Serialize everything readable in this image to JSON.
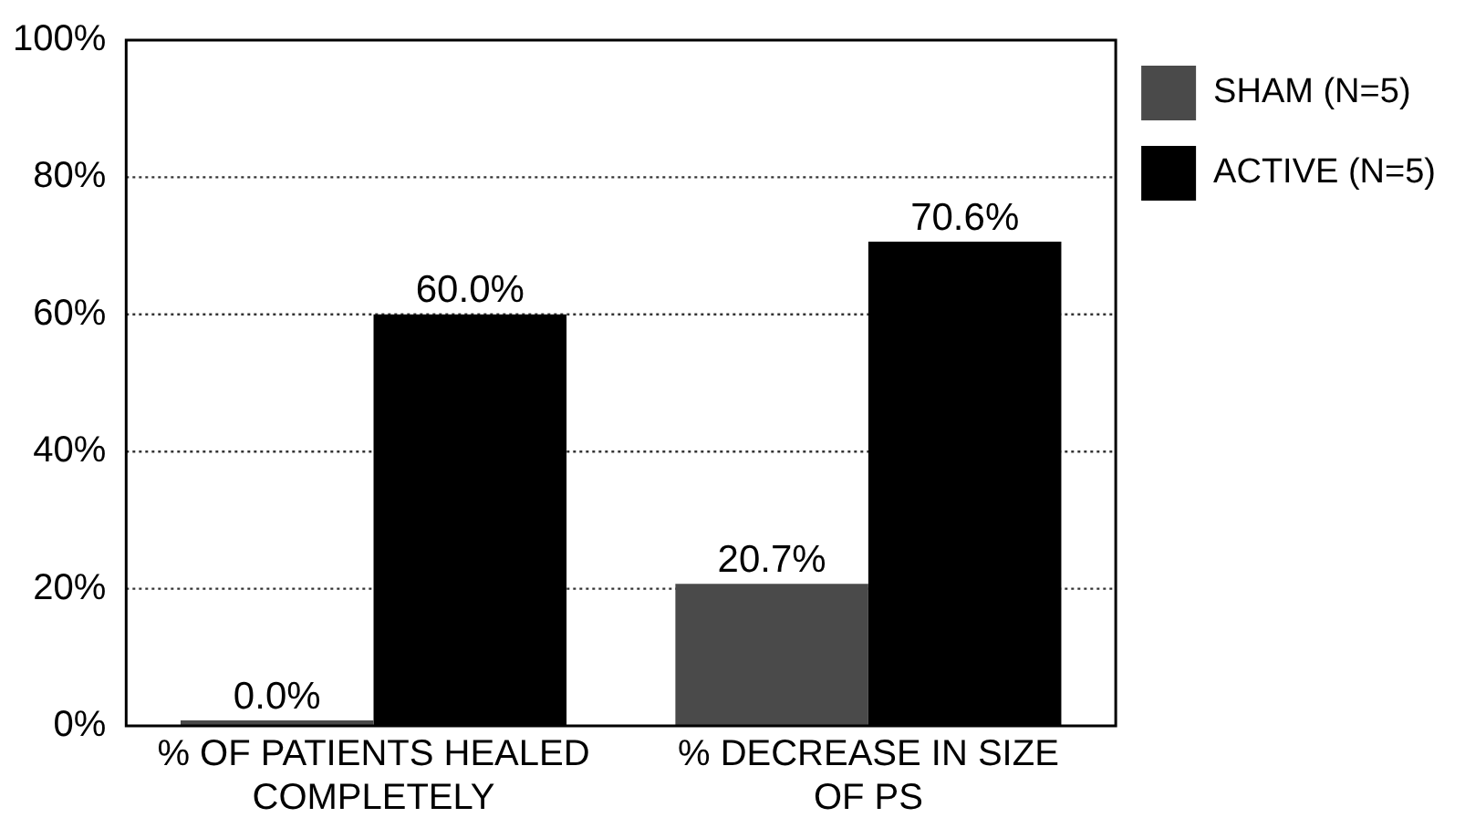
{
  "chart_data": {
    "type": "bar",
    "categories": [
      "% OF PATIENTS HEALED COMPLETELY",
      "% DECREASE IN SIZE OF PS"
    ],
    "series": [
      {
        "name": "SHAM (N=5)",
        "color": "#4a4a4a",
        "values": [
          0.0,
          20.7
        ],
        "value_labels": [
          "0.0%",
          "20.7%"
        ]
      },
      {
        "name": "ACTIVE (N=5)",
        "color": "#000000",
        "values": [
          60.0,
          70.6
        ],
        "value_labels": [
          "60.0%",
          "70.6%"
        ]
      }
    ],
    "ylim": [
      0,
      100
    ],
    "yticks": [
      {
        "value": 0,
        "label": "0%"
      },
      {
        "value": 20,
        "label": "20%"
      },
      {
        "value": 40,
        "label": "40%"
      },
      {
        "value": 60,
        "label": "60%"
      },
      {
        "value": 80,
        "label": "80%"
      },
      {
        "value": 100,
        "label": "100%"
      }
    ],
    "grid": "y",
    "legend": "top right"
  }
}
